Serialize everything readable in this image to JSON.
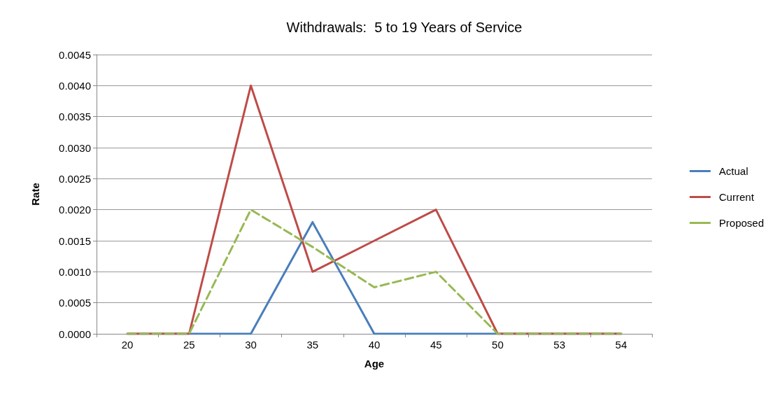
{
  "chart_data": {
    "type": "line",
    "title": "Withdrawals:  5 to 19 Years of Service",
    "xlabel": "Age",
    "ylabel": "Rate",
    "categories": [
      "20",
      "25",
      "30",
      "35",
      "40",
      "45",
      "50",
      "53",
      "54"
    ],
    "series": [
      {
        "name": "Actual",
        "color": "#4a7ebb",
        "values": [
          0,
          0,
          0,
          0.0018,
          0,
          0,
          0,
          0,
          0
        ]
      },
      {
        "name": "Current",
        "color": "#be4b48",
        "values": [
          0,
          0,
          0.004,
          0.001,
          0.0015,
          0.002,
          0,
          0,
          0
        ]
      },
      {
        "name": "Proposed",
        "color": "#98b954",
        "line_style": "dashed",
        "values": [
          0,
          0,
          0.002,
          0.0014,
          0.00075,
          0.001,
          0,
          0,
          0
        ]
      }
    ],
    "ylim": [
      0,
      0.0045
    ],
    "yticks": [
      {
        "value": 0,
        "label": "0.0000"
      },
      {
        "value": 0.0005,
        "label": "0.0005"
      },
      {
        "value": 0.001,
        "label": "0.0010"
      },
      {
        "value": 0.0015,
        "label": "0.0015"
      },
      {
        "value": 0.002,
        "label": "0.0020"
      },
      {
        "value": 0.0025,
        "label": "0.0025"
      },
      {
        "value": 0.003,
        "label": "0.0030"
      },
      {
        "value": 0.0035,
        "label": "0.0035"
      },
      {
        "value": 0.004,
        "label": "0.0040"
      },
      {
        "value": 0.0045,
        "label": "0.0045"
      }
    ],
    "grid": "y",
    "legend": "right",
    "marker": "none",
    "line_style": "solid"
  }
}
